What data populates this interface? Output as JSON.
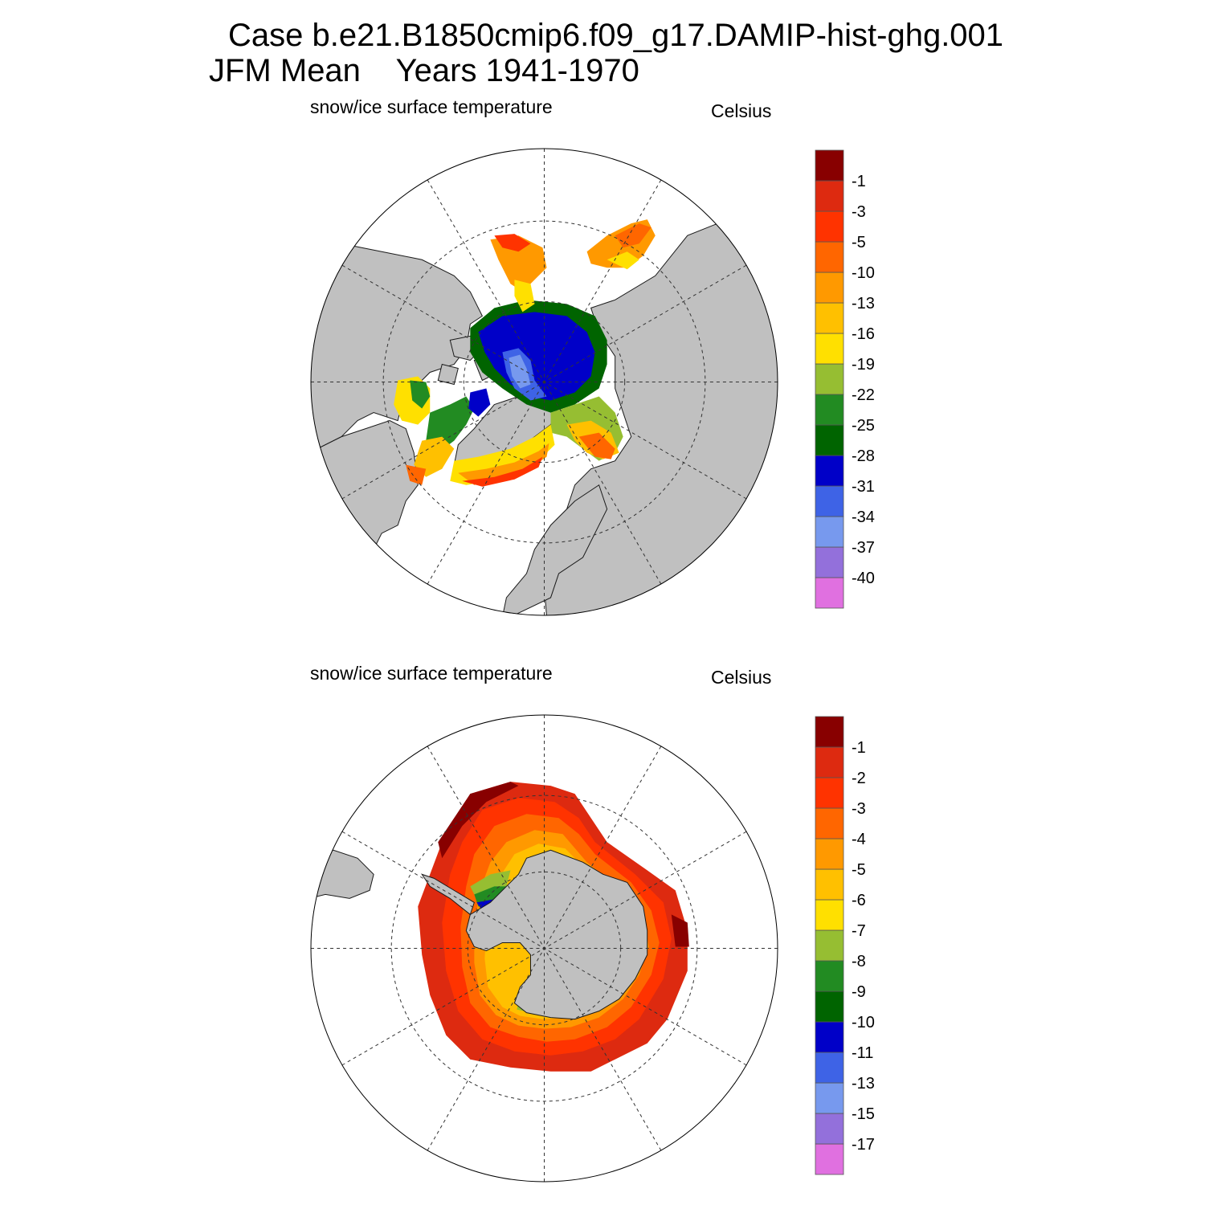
{
  "header": {
    "line1": "Case b.e21.B1850cmip6.f09_g17.DAMIP-hist-ghg.001",
    "line2": "JFM Mean    Years 1941-1970"
  },
  "colors": {
    "land": "#c0c0c0",
    "coast": "#1a1a1a",
    "gridline": "#333333",
    "palette": [
      "#e070e0",
      "#9370db",
      "#7799ee",
      "#3e63e6",
      "#0000c8",
      "#006400",
      "#228b22",
      "#96be32",
      "#ffe000",
      "#ffc000",
      "#ff9900",
      "#ff6600",
      "#ff3300",
      "#dd2a10",
      "#880000"
    ]
  },
  "panels": [
    {
      "id": "north",
      "hemisphere": "Arctic",
      "left_label": "snow/ice surface temperature",
      "right_label": "Celsius",
      "colorbar_levels": [
        "-40",
        "-37",
        "-34",
        "-31",
        "-28",
        "-25",
        "-22",
        "-19",
        "-16",
        "-13",
        "-10",
        "-5",
        "-3",
        "-1"
      ]
    },
    {
      "id": "south",
      "hemisphere": "Antarctic",
      "left_label": "snow/ice surface temperature",
      "right_label": "Celsius",
      "colorbar_levels": [
        "-17",
        "-15",
        "-13",
        "-11",
        "-10",
        "-9",
        "-8",
        "-7",
        "-6",
        "-5",
        "-4",
        "-3",
        "-2",
        "-1"
      ]
    }
  ]
}
